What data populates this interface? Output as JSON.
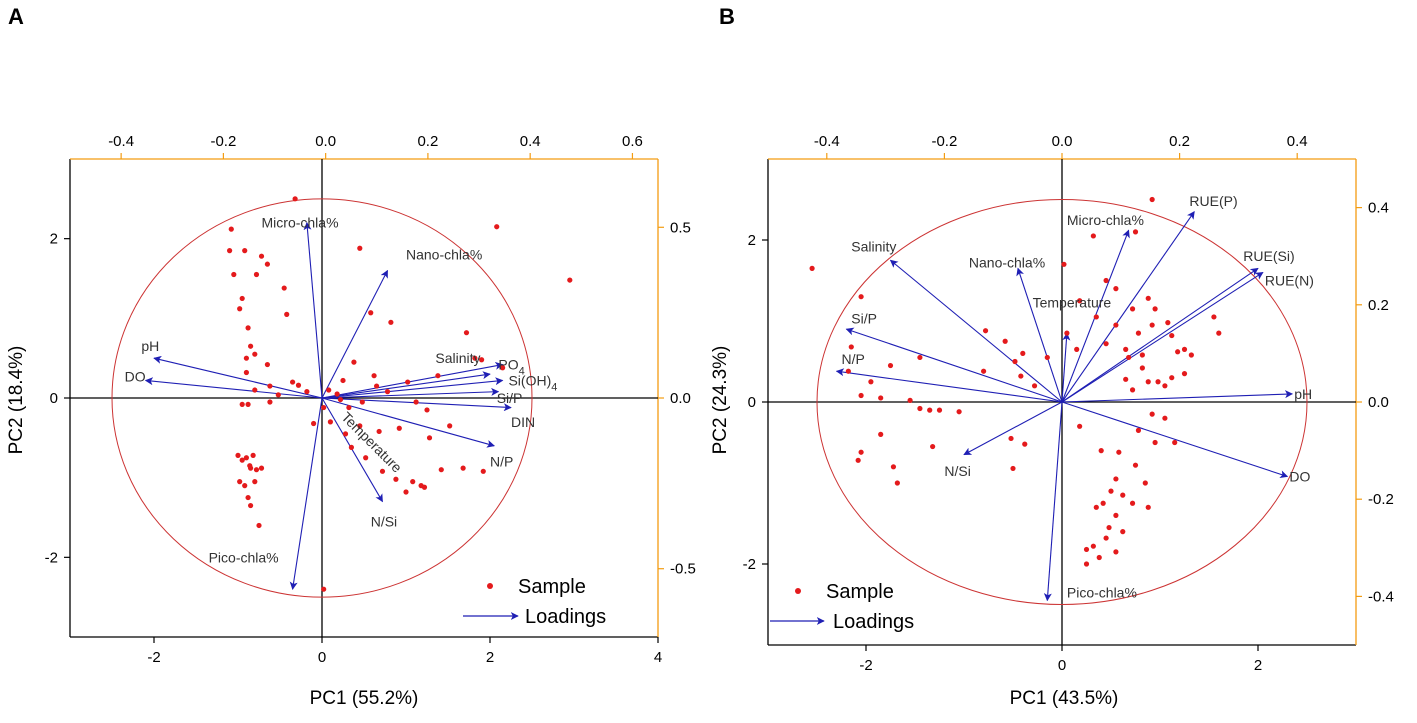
{
  "colors": {
    "sample": "#e41a1c",
    "loading": "#1f1fb4",
    "circle": "#cc3333",
    "right_axis": "#f39c12",
    "top_axis": "#f39c12",
    "frame": "#000000"
  },
  "chart_data": [
    {
      "type": "scatter",
      "panel_label": "A",
      "xlabel": "PC1 (55.2%)",
      "ylabel": "PC2 (18.4%)",
      "xlim": [
        -3,
        4
      ],
      "ylim": [
        -3,
        3
      ],
      "xticks": [
        -2,
        0,
        2,
        4
      ],
      "xtick_labels": [
        "-2",
        "0",
        "2",
        "4"
      ],
      "yticks": [
        -2,
        0,
        2
      ],
      "ytick_labels": [
        "-2",
        "0",
        "2"
      ],
      "top_lim": [
        -0.5,
        0.65
      ],
      "top_ticks": [
        -0.4,
        -0.2,
        0.0,
        0.2,
        0.4,
        0.6
      ],
      "top_tick_labels": [
        "-0.4",
        "-0.2",
        "0.0",
        "0.2",
        "0.4",
        "0.6"
      ],
      "right_lim": [
        -0.7,
        0.7
      ],
      "right_ticks": [
        0.5,
        0.0,
        -0.5
      ],
      "right_tick_labels": [
        "0.5",
        "0.0",
        "-0.5"
      ],
      "circle_radius": 2.5,
      "legend": {
        "sample": "Sample",
        "loadings": "Loadings",
        "position": "bottom-right"
      },
      "loadings": [
        {
          "name": "Micro-chla%",
          "x": -0.18,
          "y": 2.2,
          "lx": -0.72,
          "ly": 2.2
        },
        {
          "name": "Nano-chla%",
          "x": 0.78,
          "y": 1.6,
          "lx": 1.0,
          "ly": 1.8
        },
        {
          "name": "pH",
          "x": -2.0,
          "y": 0.5,
          "lx": -2.15,
          "ly": 0.65
        },
        {
          "name": "DO",
          "x": -2.1,
          "y": 0.22,
          "lx": -2.35,
          "ly": 0.27
        },
        {
          "name": "Salinity",
          "x": 2.0,
          "y": 0.3,
          "lx": 1.35,
          "ly": 0.5
        },
        {
          "name": "PO4",
          "x": 2.15,
          "y": 0.42,
          "lx": 2.1,
          "ly": 0.42
        },
        {
          "name": "Si(OH)4",
          "x": 2.15,
          "y": 0.22,
          "lx": 2.22,
          "ly": 0.22
        },
        {
          "name": "Si/P",
          "x": 2.1,
          "y": 0.08,
          "lx": 2.08,
          "ly": 0.0
        },
        {
          "name": "DIN",
          "x": 2.25,
          "y": -0.12,
          "lx": 2.25,
          "ly": -0.3
        },
        {
          "name": "N/P",
          "x": 2.05,
          "y": -0.6,
          "lx": 2.0,
          "ly": -0.8
        },
        {
          "name": "N/Si",
          "x": 0.72,
          "y": -1.3,
          "lx": 0.58,
          "ly": -1.55
        },
        {
          "name": "Temperature",
          "x": 0.0,
          "y": 0.0,
          "lx": 0.22,
          "ly": -0.25
        },
        {
          "name": "Pico-chla%",
          "x": -0.35,
          "y": -2.4,
          "lx": -1.35,
          "ly": -2.0
        }
      ],
      "samples": [
        [
          -0.32,
          2.5
        ],
        [
          0.45,
          1.88
        ],
        [
          2.08,
          2.15
        ],
        [
          2.95,
          1.48
        ],
        [
          -1.08,
          2.12
        ],
        [
          -0.92,
          1.85
        ],
        [
          -0.65,
          1.68
        ],
        [
          -0.78,
          1.55
        ],
        [
          -1.05,
          1.55
        ],
        [
          -0.45,
          1.38
        ],
        [
          -0.95,
          1.25
        ],
        [
          -0.42,
          1.05
        ],
        [
          -1.1,
          1.85
        ],
        [
          -0.98,
          1.12
        ],
        [
          -0.72,
          1.78
        ],
        [
          -0.88,
          0.88
        ],
        [
          -0.85,
          0.65
        ],
        [
          -0.9,
          0.5
        ],
        [
          -0.8,
          0.55
        ],
        [
          -0.9,
          0.32
        ],
        [
          -0.65,
          0.42
        ],
        [
          -0.35,
          0.2
        ],
        [
          -0.18,
          0.08
        ],
        [
          -0.62,
          0.15
        ],
        [
          -0.8,
          0.1
        ],
        [
          -0.88,
          -0.08
        ],
        [
          -0.95,
          -0.08
        ],
        [
          -0.62,
          -0.05
        ],
        [
          -0.28,
          0.16
        ],
        [
          -0.52,
          0.04
        ],
        [
          -1.0,
          -0.72
        ],
        [
          -0.95,
          -0.78
        ],
        [
          -0.9,
          -0.75
        ],
        [
          -0.85,
          -0.88
        ],
        [
          -0.82,
          -0.72
        ],
        [
          -0.78,
          -0.9
        ],
        [
          -0.72,
          -0.88
        ],
        [
          -0.98,
          -1.05
        ],
        [
          -0.92,
          -1.1
        ],
        [
          -0.88,
          -1.25
        ],
        [
          -0.85,
          -1.35
        ],
        [
          -0.8,
          -1.05
        ],
        [
          -0.75,
          -1.6
        ],
        [
          -0.86,
          -0.85
        ],
        [
          0.02,
          -2.4
        ],
        [
          0.58,
          1.07
        ],
        [
          0.82,
          0.95
        ],
        [
          0.62,
          0.28
        ],
        [
          0.18,
          0.05
        ],
        [
          0.1,
          -0.3
        ],
        [
          0.22,
          -0.02
        ],
        [
          0.32,
          -0.12
        ],
        [
          0.48,
          -0.05
        ],
        [
          0.65,
          0.15
        ],
        [
          0.78,
          0.08
        ],
        [
          0.92,
          -0.38
        ],
        [
          1.02,
          0.2
        ],
        [
          1.12,
          -0.05
        ],
        [
          1.25,
          -0.15
        ],
        [
          1.38,
          0.28
        ],
        [
          1.52,
          -0.35
        ],
        [
          1.72,
          0.82
        ],
        [
          1.82,
          0.5
        ],
        [
          1.9,
          0.48
        ],
        [
          1.68,
          -0.88
        ],
        [
          1.92,
          -0.92
        ],
        [
          1.42,
          -0.9
        ],
        [
          1.18,
          -1.1
        ],
        [
          1.08,
          -1.05
        ],
        [
          1.22,
          -1.12
        ],
        [
          1.0,
          -1.18
        ],
        [
          0.72,
          -0.92
        ],
        [
          0.88,
          -1.02
        ],
        [
          0.52,
          -0.75
        ],
        [
          0.35,
          -0.62
        ],
        [
          0.28,
          -0.45
        ],
        [
          0.68,
          -0.42
        ],
        [
          0.45,
          -0.35
        ],
        [
          1.28,
          -0.5
        ],
        [
          0.02,
          -0.12
        ],
        [
          -0.1,
          -0.32
        ],
        [
          0.08,
          0.1
        ],
        [
          0.38,
          0.45
        ],
        [
          0.25,
          0.22
        ],
        [
          2.15,
          0.38
        ]
      ]
    },
    {
      "type": "scatter",
      "panel_label": "B",
      "xlabel": "PC1 (43.5%)",
      "ylabel": "PC2 (24.3%)",
      "xlim": [
        -3,
        3
      ],
      "ylim": [
        -3,
        3
      ],
      "xticks": [
        -2,
        0,
        2
      ],
      "xtick_labels": [
        "-2",
        "0",
        "2"
      ],
      "yticks": [
        -2,
        0,
        2
      ],
      "ytick_labels": [
        "-2",
        "0",
        "2"
      ],
      "top_lim": [
        -0.5,
        0.5
      ],
      "top_ticks": [
        -0.4,
        -0.2,
        0.0,
        0.2,
        0.4
      ],
      "top_tick_labels": [
        "-0.4",
        "-0.2",
        "0.0",
        "0.2",
        "0.4"
      ],
      "right_lim": [
        -0.5,
        0.5
      ],
      "right_ticks": [
        0.4,
        0.2,
        0.0,
        -0.2,
        -0.4
      ],
      "right_tick_labels": [
        "0.4",
        "0.2",
        "0.0",
        "-0.2",
        "-0.4"
      ],
      "circle_radius": 2.5,
      "legend": {
        "sample": "Sample",
        "loadings": "Loadings",
        "position": "bottom-left"
      },
      "loadings": [
        {
          "name": "RUE(P)",
          "x": 1.35,
          "y": 2.35,
          "lx": 1.3,
          "ly": 2.48
        },
        {
          "name": "RUE(Si)",
          "x": 2.0,
          "y": 1.65,
          "lx": 1.85,
          "ly": 1.8
        },
        {
          "name": "RUE(N)",
          "x": 2.05,
          "y": 1.6,
          "lx": 2.07,
          "ly": 1.5
        },
        {
          "name": "Micro-chla%",
          "x": 0.68,
          "y": 2.12,
          "lx": 0.05,
          "ly": 2.25
        },
        {
          "name": "Salinity",
          "x": -1.75,
          "y": 1.75,
          "lx": -2.15,
          "ly": 1.92
        },
        {
          "name": "Nano-chla%",
          "x": -0.45,
          "y": 1.65,
          "lx": -0.95,
          "ly": 1.72
        },
        {
          "name": "Temperature",
          "x": 0.05,
          "y": 0.85,
          "lx": -0.3,
          "ly": 1.23
        },
        {
          "name": "Si/P",
          "x": -2.2,
          "y": 0.9,
          "lx": -2.15,
          "ly": 1.03
        },
        {
          "name": "N/P",
          "x": -2.3,
          "y": 0.38,
          "lx": -2.25,
          "ly": 0.53
        },
        {
          "name": "pH",
          "x": 2.35,
          "y": 0.1,
          "lx": 2.37,
          "ly": 0.1
        },
        {
          "name": "DO",
          "x": 2.3,
          "y": -0.92,
          "lx": 2.32,
          "ly": -0.92
        },
        {
          "name": "N/Si",
          "x": -1.0,
          "y": -0.65,
          "lx": -1.2,
          "ly": -0.85
        },
        {
          "name": "Pico-chla%",
          "x": -0.15,
          "y": -2.45,
          "lx": 0.05,
          "ly": -2.35
        }
      ],
      "samples": [
        [
          0.92,
          2.5
        ],
        [
          0.75,
          2.1
        ],
        [
          0.32,
          2.05
        ],
        [
          0.02,
          1.7
        ],
        [
          -2.55,
          1.65
        ],
        [
          -2.05,
          1.3
        ],
        [
          0.45,
          1.5
        ],
        [
          0.55,
          1.4
        ],
        [
          0.18,
          1.25
        ],
        [
          0.72,
          1.15
        ],
        [
          0.88,
          1.28
        ],
        [
          0.35,
          1.05
        ],
        [
          0.95,
          1.15
        ],
        [
          0.92,
          0.95
        ],
        [
          1.08,
          0.98
        ],
        [
          0.78,
          0.85
        ],
        [
          0.55,
          0.95
        ],
        [
          1.55,
          1.05
        ],
        [
          1.12,
          0.82
        ],
        [
          1.25,
          0.65
        ],
        [
          1.18,
          0.62
        ],
        [
          1.32,
          0.58
        ],
        [
          0.65,
          0.65
        ],
        [
          0.82,
          0.58
        ],
        [
          0.45,
          0.72
        ],
        [
          0.68,
          0.55
        ],
        [
          -0.78,
          0.88
        ],
        [
          -0.58,
          0.75
        ],
        [
          -0.48,
          0.5
        ],
        [
          -0.4,
          0.6
        ],
        [
          -0.15,
          0.55
        ],
        [
          0.05,
          0.85
        ],
        [
          0.15,
          0.65
        ],
        [
          -1.45,
          0.55
        ],
        [
          -1.75,
          0.45
        ],
        [
          -2.15,
          0.68
        ],
        [
          -2.18,
          0.38
        ],
        [
          -1.95,
          0.25
        ],
        [
          -2.05,
          0.08
        ],
        [
          -1.85,
          0.05
        ],
        [
          -1.45,
          -0.08
        ],
        [
          -1.25,
          -0.1
        ],
        [
          -1.05,
          -0.12
        ],
        [
          -1.35,
          -0.1
        ],
        [
          -1.55,
          0.02
        ],
        [
          -0.8,
          0.38
        ],
        [
          -0.42,
          0.32
        ],
        [
          -0.28,
          0.2
        ],
        [
          0.82,
          0.42
        ],
        [
          0.65,
          0.28
        ],
        [
          0.88,
          0.25
        ],
        [
          0.98,
          0.25
        ],
        [
          1.12,
          0.3
        ],
        [
          1.25,
          0.35
        ],
        [
          1.05,
          0.2
        ],
        [
          0.72,
          0.15
        ],
        [
          0.92,
          -0.15
        ],
        [
          1.05,
          -0.2
        ],
        [
          0.78,
          -0.35
        ],
        [
          0.95,
          -0.5
        ],
        [
          1.15,
          -0.5
        ],
        [
          0.58,
          -0.62
        ],
        [
          0.75,
          -0.78
        ],
        [
          0.55,
          -0.95
        ],
        [
          0.62,
          -1.15
        ],
        [
          0.85,
          -1.0
        ],
        [
          0.72,
          -1.25
        ],
        [
          0.88,
          -1.3
        ],
        [
          0.55,
          -1.4
        ],
        [
          0.48,
          -1.55
        ],
        [
          0.62,
          -1.6
        ],
        [
          0.45,
          -1.68
        ],
        [
          0.32,
          -1.78
        ],
        [
          0.25,
          -1.82
        ],
        [
          0.55,
          -1.85
        ],
        [
          0.38,
          -1.92
        ],
        [
          0.25,
          -2.0
        ],
        [
          -2.05,
          -0.62
        ],
        [
          -2.08,
          -0.72
        ],
        [
          -1.72,
          -0.8
        ],
        [
          -1.68,
          -1.0
        ],
        [
          -1.85,
          -0.4
        ],
        [
          -1.32,
          -0.55
        ],
        [
          -0.52,
          -0.45
        ],
        [
          -0.38,
          -0.52
        ],
        [
          -0.5,
          -0.82
        ],
        [
          0.35,
          -1.3
        ],
        [
          0.42,
          -1.25
        ],
        [
          0.5,
          -1.1
        ],
        [
          0.18,
          -0.3
        ],
        [
          0.4,
          -0.6
        ],
        [
          1.6,
          0.85
        ]
      ]
    }
  ]
}
